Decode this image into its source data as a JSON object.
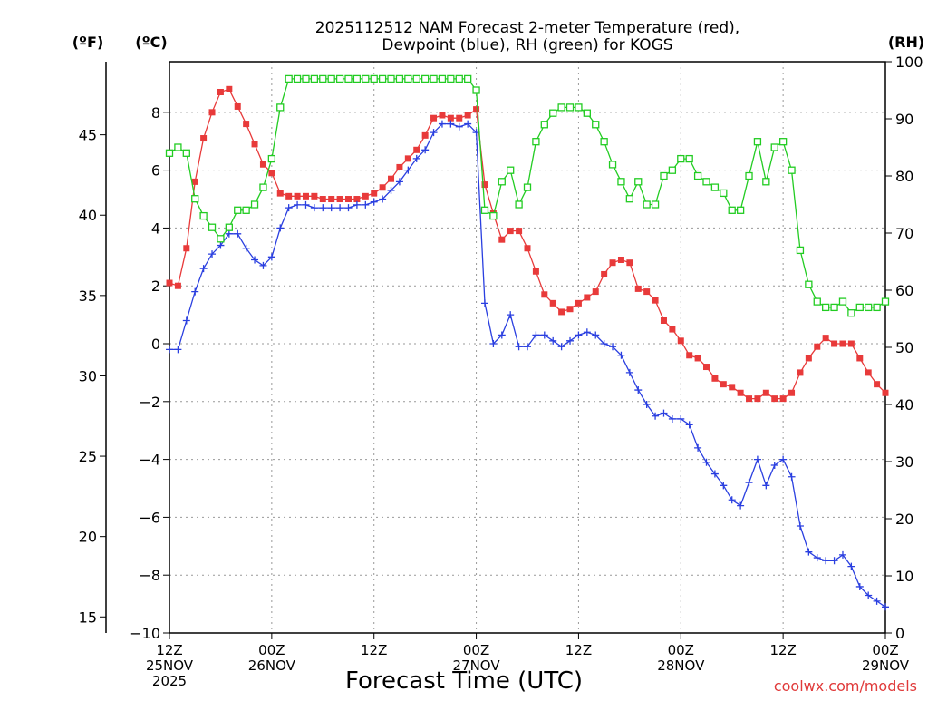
{
  "chart_data": {
    "type": "line",
    "title_line1": "2025112512 NAM Forecast 2-meter Temperature (red),",
    "title_line2": "Dewpoint (blue), RH (green) for KOGS",
    "xlabel": "Forecast Time (UTC)",
    "credit": "coolwx.com/models",
    "unit_labels": {
      "fahrenheit": "(ºF)",
      "celsius": "(ºC)",
      "rh": "(RH)"
    },
    "x_range_hours": [
      0,
      84
    ],
    "x_ticks": [
      {
        "hour": 0,
        "line1": "12Z",
        "line2": "25NOV",
        "line3": "2025"
      },
      {
        "hour": 12,
        "line1": "00Z",
        "line2": "26NOV",
        "line3": ""
      },
      {
        "hour": 24,
        "line1": "12Z",
        "line2": "",
        "line3": ""
      },
      {
        "hour": 36,
        "line1": "00Z",
        "line2": "27NOV",
        "line3": ""
      },
      {
        "hour": 48,
        "line1": "12Z",
        "line2": "",
        "line3": ""
      },
      {
        "hour": 60,
        "line1": "00Z",
        "line2": "28NOV",
        "line3": ""
      },
      {
        "hour": 72,
        "line1": "12Z",
        "line2": "",
        "line3": ""
      },
      {
        "hour": 84,
        "line1": "00Z",
        "line2": "29NOV",
        "line3": ""
      }
    ],
    "celsius_axis": {
      "range": [
        -10,
        9.75
      ],
      "ticks": [
        "8",
        "6",
        "4",
        "2",
        "0",
        "−2",
        "−4",
        "−6",
        "−8",
        "−10"
      ]
    },
    "fahrenheit_axis": {
      "ticks": [
        "45",
        "40",
        "35",
        "30",
        "25",
        "20",
        "15"
      ]
    },
    "rh_axis": {
      "range": [
        0,
        100
      ],
      "ticks": [
        "100",
        "90",
        "80",
        "70",
        "60",
        "50",
        "40",
        "30",
        "20",
        "10",
        "0"
      ]
    },
    "grid": true,
    "series": [
      {
        "name": "Temperature",
        "color": "#e83a3a",
        "marker": "filled-square",
        "units": "C",
        "x": [
          0,
          1,
          2,
          3,
          4,
          5,
          6,
          7,
          8,
          9,
          10,
          11,
          12,
          13,
          14,
          15,
          16,
          17,
          18,
          19,
          20,
          21,
          22,
          23,
          24,
          25,
          26,
          27,
          28,
          29,
          30,
          31,
          32,
          33,
          34,
          35,
          36,
          37,
          38,
          39,
          40,
          41,
          42,
          43,
          44,
          45,
          46,
          47,
          48,
          49,
          50,
          51,
          52,
          53,
          54,
          55,
          56,
          57,
          58,
          59,
          60,
          61,
          62,
          63,
          64,
          65,
          66,
          67,
          68,
          69,
          70,
          71,
          72,
          73,
          74,
          75,
          76,
          77,
          78,
          79,
          80,
          81,
          82,
          83,
          84
        ],
        "values": [
          2.1,
          2.0,
          3.3,
          5.6,
          7.1,
          8.0,
          8.7,
          8.8,
          8.2,
          7.6,
          6.9,
          6.2,
          5.9,
          5.2,
          5.1,
          5.1,
          5.1,
          5.1,
          5.0,
          5.0,
          5.0,
          5.0,
          5.0,
          5.1,
          5.2,
          5.4,
          5.7,
          6.1,
          6.4,
          6.7,
          7.2,
          7.8,
          7.9,
          7.8,
          7.8,
          7.9,
          8.1,
          5.5,
          4.5,
          3.6,
          3.9,
          3.9,
          3.3,
          2.5,
          1.7,
          1.4,
          1.1,
          1.2,
          1.4,
          1.6,
          1.8,
          2.4,
          2.8,
          2.9,
          2.8,
          1.9,
          1.8,
          1.5,
          0.8,
          0.5,
          0.1,
          -0.4,
          -0.5,
          -0.8,
          -1.2,
          -1.4,
          -1.5,
          -1.7,
          -1.9,
          -1.9,
          -1.7,
          -1.9,
          -1.9,
          -1.7,
          -1.0,
          -0.5,
          -0.1,
          0.2,
          0.0,
          0.0,
          0.0,
          -0.5,
          -1.0,
          -1.4,
          -1.7
        ]
      },
      {
        "name": "Dewpoint",
        "color": "#2a3fe0",
        "marker": "plus",
        "units": "C",
        "x": [
          0,
          1,
          2,
          3,
          4,
          5,
          6,
          7,
          8,
          9,
          10,
          11,
          12,
          13,
          14,
          15,
          16,
          17,
          18,
          19,
          20,
          21,
          22,
          23,
          24,
          25,
          26,
          27,
          28,
          29,
          30,
          31,
          32,
          33,
          34,
          35,
          36,
          37,
          38,
          39,
          40,
          41,
          42,
          43,
          44,
          45,
          46,
          47,
          48,
          49,
          50,
          51,
          52,
          53,
          54,
          55,
          56,
          57,
          58,
          59,
          60,
          61,
          62,
          63,
          64,
          65,
          66,
          67,
          68,
          69,
          70,
          71,
          72,
          73,
          74,
          75,
          76,
          77,
          78,
          79,
          80,
          81,
          82,
          83,
          84
        ],
        "values": [
          -0.2,
          -0.2,
          0.8,
          1.8,
          2.6,
          3.1,
          3.4,
          3.8,
          3.8,
          3.3,
          2.9,
          2.7,
          3.0,
          4.0,
          4.7,
          4.8,
          4.8,
          4.7,
          4.7,
          4.7,
          4.7,
          4.7,
          4.8,
          4.8,
          4.9,
          5.0,
          5.3,
          5.6,
          6.0,
          6.4,
          6.7,
          7.3,
          7.6,
          7.6,
          7.5,
          7.6,
          7.3,
          1.4,
          0.0,
          0.3,
          1.0,
          -0.1,
          -0.1,
          0.3,
          0.3,
          0.1,
          -0.1,
          0.1,
          0.3,
          0.4,
          0.3,
          0.0,
          -0.1,
          -0.4,
          -1.0,
          -1.6,
          -2.1,
          -2.5,
          -2.4,
          -2.6,
          -2.6,
          -2.8,
          -3.6,
          -4.1,
          -4.5,
          -4.9,
          -5.4,
          -5.6,
          -4.8,
          -4.0,
          -4.9,
          -4.2,
          -4.0,
          -4.6,
          -6.3,
          -7.2,
          -7.4,
          -7.5,
          -7.5,
          -7.3,
          -7.7,
          -8.4,
          -8.7,
          -8.9,
          -9.1
        ]
      },
      {
        "name": "RH",
        "color": "#22cc22",
        "marker": "open-square",
        "units": "%",
        "x": [
          0,
          1,
          2,
          3,
          4,
          5,
          6,
          7,
          8,
          9,
          10,
          11,
          12,
          13,
          14,
          15,
          16,
          17,
          18,
          19,
          20,
          21,
          22,
          23,
          24,
          25,
          26,
          27,
          28,
          29,
          30,
          31,
          32,
          33,
          34,
          35,
          36,
          37,
          38,
          39,
          40,
          41,
          42,
          43,
          44,
          45,
          46,
          47,
          48,
          49,
          50,
          51,
          52,
          53,
          54,
          55,
          56,
          57,
          58,
          59,
          60,
          61,
          62,
          63,
          64,
          65,
          66,
          67,
          68,
          69,
          70,
          71,
          72,
          73,
          74,
          75,
          76,
          77,
          78,
          79,
          80,
          81,
          82,
          83,
          84
        ],
        "values": [
          84,
          85,
          84,
          76,
          73,
          71,
          69,
          71,
          74,
          74,
          75,
          78,
          83,
          92,
          97,
          97,
          97,
          97,
          97,
          97,
          97,
          97,
          97,
          97,
          97,
          97,
          97,
          97,
          97,
          97,
          97,
          97,
          97,
          97,
          97,
          97,
          95,
          74,
          73,
          79,
          81,
          75,
          78,
          86,
          89,
          91,
          92,
          92,
          92,
          91,
          89,
          86,
          82,
          79,
          76,
          79,
          75,
          75,
          80,
          81,
          83,
          83,
          80,
          79,
          78,
          77,
          74,
          74,
          80,
          86,
          79,
          85,
          86,
          81,
          67,
          61,
          58,
          57,
          57,
          58,
          56,
          57,
          57,
          57,
          58
        ]
      }
    ]
  }
}
